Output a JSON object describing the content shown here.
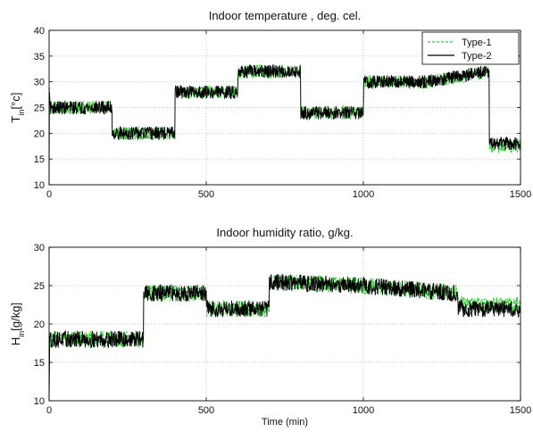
{
  "chart_data": [
    {
      "type": "line",
      "title": "Indoor temperature , deg. cel.",
      "xlabel": "",
      "ylabel": "T_in[°c]",
      "ylabel_main": "T",
      "ylabel_sub": "in",
      "ylabel_rest": "[°c]",
      "xlim": [
        0,
        1500
      ],
      "ylim": [
        10,
        40
      ],
      "xticks": [
        0,
        500,
        1000,
        1500
      ],
      "yticks": [
        10,
        15,
        20,
        25,
        30,
        35,
        40
      ],
      "grid": true,
      "legend": "top-right",
      "series": [
        {
          "name": "Type-1",
          "color": "#33cc33",
          "style": "dashed",
          "x": [
            0,
            1,
            3,
            5,
            200,
            201,
            400,
            401,
            600,
            601,
            800,
            801,
            1000,
            1001,
            1200,
            1400,
            1401,
            1500
          ],
          "y": [
            11,
            29,
            26,
            25,
            25,
            20,
            20,
            28,
            28,
            32,
            32,
            24,
            24,
            30,
            30,
            32,
            17.5,
            17.5
          ]
        },
        {
          "name": "Type-2",
          "color": "#000000",
          "style": "solid",
          "x": [
            0,
            1,
            3,
            5,
            200,
            201,
            400,
            401,
            600,
            601,
            800,
            801,
            1000,
            1001,
            1200,
            1400,
            1401,
            1500
          ],
          "y": [
            10.5,
            28,
            25.5,
            25,
            25,
            20,
            20,
            28,
            28,
            32,
            32,
            24,
            24,
            30,
            30,
            32,
            18,
            18
          ]
        }
      ]
    },
    {
      "type": "line",
      "title": "Indoor humidity ratio, g/kg.",
      "xlabel": "Time (min)",
      "ylabel": "H_in[g/kg]",
      "ylabel_main": "H",
      "ylabel_sub": "in",
      "ylabel_rest": "[g/kg]",
      "xlim": [
        0,
        1500
      ],
      "ylim": [
        10,
        30
      ],
      "xticks": [
        0,
        500,
        1000,
        1500
      ],
      "yticks": [
        10,
        15,
        20,
        25,
        30
      ],
      "grid": true,
      "series": [
        {
          "name": "Type-1",
          "color": "#33cc33",
          "style": "dashed",
          "x": [
            0,
            2,
            5,
            300,
            301,
            500,
            501,
            700,
            701,
            1000,
            1300,
            1301,
            1500
          ],
          "y": [
            10.5,
            19,
            18,
            18,
            24,
            24,
            22,
            22,
            25.5,
            25,
            24,
            22.5,
            22.5
          ]
        },
        {
          "name": "Type-2",
          "color": "#000000",
          "style": "solid",
          "x": [
            0,
            2,
            5,
            300,
            301,
            500,
            501,
            700,
            701,
            1000,
            1300,
            1301,
            1500
          ],
          "y": [
            10,
            18.5,
            18,
            18,
            24,
            24,
            22,
            22,
            25.5,
            25,
            24,
            22,
            22
          ]
        }
      ]
    }
  ]
}
